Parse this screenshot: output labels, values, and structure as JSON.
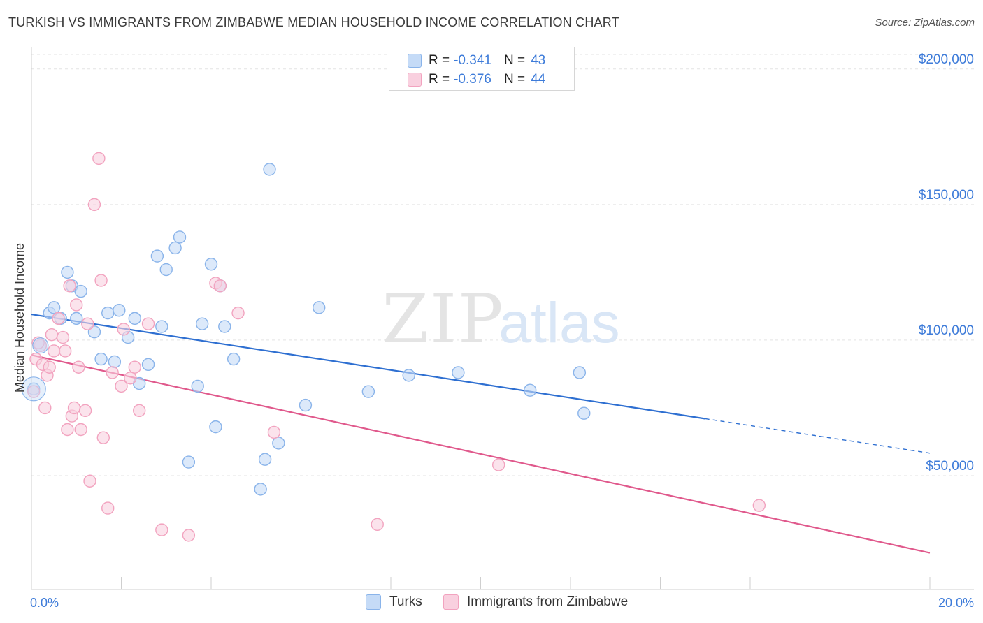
{
  "header": {
    "title": "TURKISH VS IMMIGRANTS FROM ZIMBABWE MEDIAN HOUSEHOLD INCOME CORRELATION CHART",
    "source": "Source: ZipAtlas.com"
  },
  "watermark": {
    "zip": "ZIP",
    "atlas": "atlas"
  },
  "legend": {
    "rows": [
      {
        "r_label": "R =",
        "r_value": "-0.341",
        "n_label": "N =",
        "n_value": "43"
      },
      {
        "r_label": "R =",
        "r_value": "-0.376",
        "n_label": "N =",
        "n_value": "44"
      }
    ]
  },
  "bottom_legend": {
    "turks": "Turks",
    "zimbabwe": "Immigrants from Zimbabwe"
  },
  "chart_data": {
    "type": "scatter",
    "ylabel": "Median Household Income",
    "xlim": [
      0,
      20
    ],
    "ylim": [
      8000,
      210000
    ],
    "x_tick_labels": [
      "0.0%",
      "20.0%"
    ],
    "y_ticks": [
      {
        "value": 50000,
        "label": "$50,000"
      },
      {
        "value": 100000,
        "label": "$100,000"
      },
      {
        "value": 150000,
        "label": "$150,000"
      },
      {
        "value": 200000,
        "label": "$200,000"
      }
    ],
    "grid": true,
    "series": [
      {
        "name": "Turks",
        "color": "#8ab4ea",
        "fill": "#c5dbf7",
        "line_color": "#2e6fd1",
        "trend": {
          "x0": 0,
          "y0": 109500,
          "x1": 15.0,
          "y1": 71000,
          "dash_x1": 20.0,
          "dash_y1": 58300
        },
        "points": [
          [
            0.05,
            82000
          ],
          [
            0.2,
            98000
          ],
          [
            0.4,
            110000
          ],
          [
            0.5,
            112000
          ],
          [
            0.65,
            108000
          ],
          [
            0.8,
            125000
          ],
          [
            0.9,
            120000
          ],
          [
            1.0,
            108000
          ],
          [
            1.1,
            118000
          ],
          [
            1.4,
            103000
          ],
          [
            1.55,
            93000
          ],
          [
            1.7,
            110000
          ],
          [
            1.85,
            92000
          ],
          [
            1.95,
            111000
          ],
          [
            2.15,
            101000
          ],
          [
            2.3,
            108000
          ],
          [
            2.4,
            84000
          ],
          [
            2.6,
            91000
          ],
          [
            2.8,
            131000
          ],
          [
            2.9,
            105000
          ],
          [
            3.0,
            126000
          ],
          [
            3.2,
            134000
          ],
          [
            3.3,
            138000
          ],
          [
            3.5,
            55000
          ],
          [
            3.7,
            83000
          ],
          [
            3.8,
            106000
          ],
          [
            4.0,
            128000
          ],
          [
            4.1,
            68000
          ],
          [
            4.2,
            120000
          ],
          [
            4.3,
            105000
          ],
          [
            4.5,
            93000
          ],
          [
            5.1,
            45000
          ],
          [
            5.2,
            56000
          ],
          [
            5.3,
            163000
          ],
          [
            5.5,
            62000
          ],
          [
            6.1,
            76000
          ],
          [
            6.4,
            112000
          ],
          [
            7.5,
            81000
          ],
          [
            8.4,
            87000
          ],
          [
            9.5,
            88000
          ],
          [
            11.1,
            81500
          ],
          [
            12.2,
            88000
          ],
          [
            12.3,
            73000
          ]
        ]
      },
      {
        "name": "Immigrants from Zimbabwe",
        "color": "#f2a3bf",
        "fill": "#f9d0df",
        "line_color": "#e0598c",
        "trend": {
          "x0": 0,
          "y0": 94500,
          "x1": 20.0,
          "y1": 21500
        },
        "points": [
          [
            0.05,
            81000
          ],
          [
            0.1,
            93000
          ],
          [
            0.2,
            98000
          ],
          [
            0.25,
            91000
          ],
          [
            0.3,
            75000
          ],
          [
            0.35,
            87000
          ],
          [
            0.4,
            90000
          ],
          [
            0.45,
            102000
          ],
          [
            0.5,
            96000
          ],
          [
            0.6,
            108000
          ],
          [
            0.7,
            101000
          ],
          [
            0.75,
            96000
          ],
          [
            0.8,
            67000
          ],
          [
            0.85,
            120000
          ],
          [
            0.9,
            72000
          ],
          [
            0.95,
            75000
          ],
          [
            1.0,
            113000
          ],
          [
            1.05,
            90000
          ],
          [
            1.1,
            67000
          ],
          [
            1.2,
            74000
          ],
          [
            1.25,
            106000
          ],
          [
            1.3,
            48000
          ],
          [
            1.4,
            150000
          ],
          [
            1.5,
            167000
          ],
          [
            1.55,
            122000
          ],
          [
            1.6,
            64000
          ],
          [
            1.7,
            38000
          ],
          [
            1.8,
            88000
          ],
          [
            2.0,
            83000
          ],
          [
            2.05,
            104000
          ],
          [
            2.2,
            86000
          ],
          [
            2.3,
            90000
          ],
          [
            2.4,
            74000
          ],
          [
            2.6,
            106000
          ],
          [
            2.9,
            30000
          ],
          [
            3.5,
            28000
          ],
          [
            4.1,
            121000
          ],
          [
            4.2,
            120000
          ],
          [
            4.6,
            110000
          ],
          [
            5.4,
            66000
          ],
          [
            7.7,
            32000
          ],
          [
            10.4,
            54000
          ],
          [
            16.2,
            39000
          ],
          [
            0.15,
            99000
          ]
        ]
      }
    ]
  }
}
